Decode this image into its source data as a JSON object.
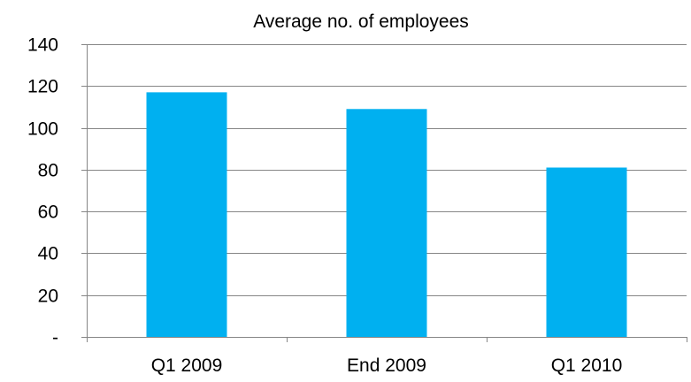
{
  "chart_data": {
    "type": "bar",
    "title": "Average no. of employees",
    "categories": [
      "Q1 2009",
      "End 2009",
      "Q1 2010"
    ],
    "values": [
      117,
      109,
      81
    ],
    "ylim": [
      0,
      140
    ],
    "yticks": [
      0,
      20,
      40,
      60,
      80,
      100,
      120,
      140
    ],
    "ytick_labels": [
      "-",
      "20",
      "40",
      "60",
      "80",
      "100",
      "120",
      "140"
    ],
    "grid": true,
    "legend": "none",
    "xlabel": "",
    "ylabel": "",
    "bar_color": "#00B0F0",
    "grid_color": "#868686"
  }
}
